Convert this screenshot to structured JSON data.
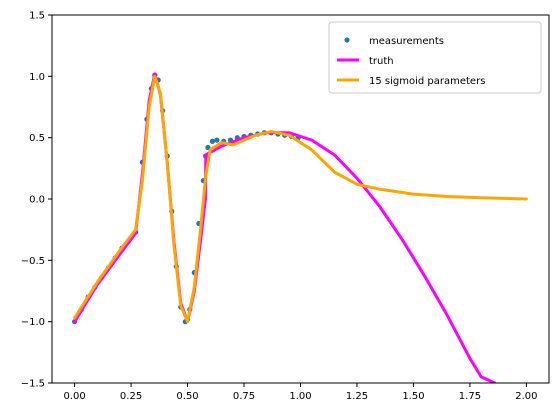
{
  "chart_data": {
    "type": "line",
    "title": "",
    "xlabel": "",
    "ylabel": "",
    "xlim": [
      -0.1,
      2.1
    ],
    "ylim": [
      -1.5,
      1.5
    ],
    "xticks": [
      0.0,
      0.25,
      0.5,
      0.75,
      1.0,
      1.25,
      1.5,
      1.75,
      2.0
    ],
    "xtick_labels": [
      "0.00",
      "0.25",
      "0.50",
      "0.75",
      "1.00",
      "1.25",
      "1.50",
      "1.75",
      "2.00"
    ],
    "yticks": [
      -1.5,
      -1.0,
      -0.5,
      0.0,
      0.5,
      1.0,
      1.5
    ],
    "ytick_labels": [
      "−1.5",
      "−1.0",
      "−0.5",
      "0.0",
      "0.5",
      "1.0",
      "1.5"
    ],
    "grid": false,
    "legend_position": "top-right",
    "series": [
      {
        "name": "measurements",
        "kind": "scatter",
        "color": "#1f77b4",
        "x": [
          0.0,
          0.03,
          0.06,
          0.09,
          0.12,
          0.15,
          0.18,
          0.21,
          0.24,
          0.27,
          0.3,
          0.32,
          0.34,
          0.355,
          0.37,
          0.39,
          0.41,
          0.43,
          0.45,
          0.47,
          0.49,
          0.5,
          0.51,
          0.53,
          0.55,
          0.57,
          0.58,
          0.59,
          0.61,
          0.63,
          0.66,
          0.69,
          0.72,
          0.75,
          0.78,
          0.81,
          0.84,
          0.87,
          0.9,
          0.93,
          0.96,
          0.99
        ],
        "y": [
          -1.0,
          -0.9,
          -0.8,
          -0.72,
          -0.64,
          -0.56,
          -0.48,
          -0.4,
          -0.34,
          -0.27,
          0.3,
          0.65,
          0.9,
          1.01,
          0.97,
          0.72,
          0.35,
          -0.1,
          -0.55,
          -0.88,
          -1.0,
          -0.98,
          -0.9,
          -0.6,
          -0.2,
          0.15,
          0.35,
          0.42,
          0.47,
          0.48,
          0.47,
          0.48,
          0.5,
          0.51,
          0.52,
          0.53,
          0.54,
          0.54,
          0.53,
          0.52,
          0.51,
          0.5
        ]
      },
      {
        "name": "truth",
        "kind": "line",
        "color": "#ff00ff",
        "x": [
          0.0,
          0.1,
          0.2,
          0.27,
          0.3,
          0.33,
          0.355,
          0.38,
          0.41,
          0.44,
          0.47,
          0.5,
          0.53,
          0.56,
          0.579,
          0.581,
          0.65,
          0.75,
          0.85,
          0.95,
          1.05,
          1.15,
          1.25,
          1.35,
          1.45,
          1.55,
          1.65,
          1.75,
          1.8,
          1.86
        ],
        "y": [
          -1.0,
          -0.7,
          -0.45,
          -0.28,
          0.2,
          0.8,
          1.02,
          0.85,
          0.3,
          -0.35,
          -0.85,
          -1.0,
          -0.75,
          -0.3,
          0.0,
          0.36,
          0.43,
          0.5,
          0.54,
          0.54,
          0.48,
          0.36,
          0.17,
          -0.06,
          -0.33,
          -0.63,
          -0.95,
          -1.3,
          -1.45,
          -1.5
        ]
      },
      {
        "name": "15 sigmoid parameters",
        "kind": "line",
        "color": "#ffa500",
        "x": [
          0.0,
          0.1,
          0.2,
          0.27,
          0.3,
          0.33,
          0.355,
          0.38,
          0.41,
          0.44,
          0.47,
          0.5,
          0.53,
          0.56,
          0.58,
          0.6,
          0.65,
          0.7,
          0.75,
          0.8,
          0.87,
          0.95,
          1.05,
          1.15,
          1.25,
          1.35,
          1.5,
          1.65,
          1.8,
          2.0
        ],
        "y": [
          -0.97,
          -0.68,
          -0.42,
          -0.25,
          0.15,
          0.75,
          1.0,
          0.86,
          0.3,
          -0.38,
          -0.87,
          -1.0,
          -0.72,
          -0.2,
          0.18,
          0.4,
          0.46,
          0.44,
          0.48,
          0.52,
          0.55,
          0.52,
          0.4,
          0.22,
          0.12,
          0.08,
          0.04,
          0.02,
          0.01,
          0.0
        ]
      }
    ]
  }
}
